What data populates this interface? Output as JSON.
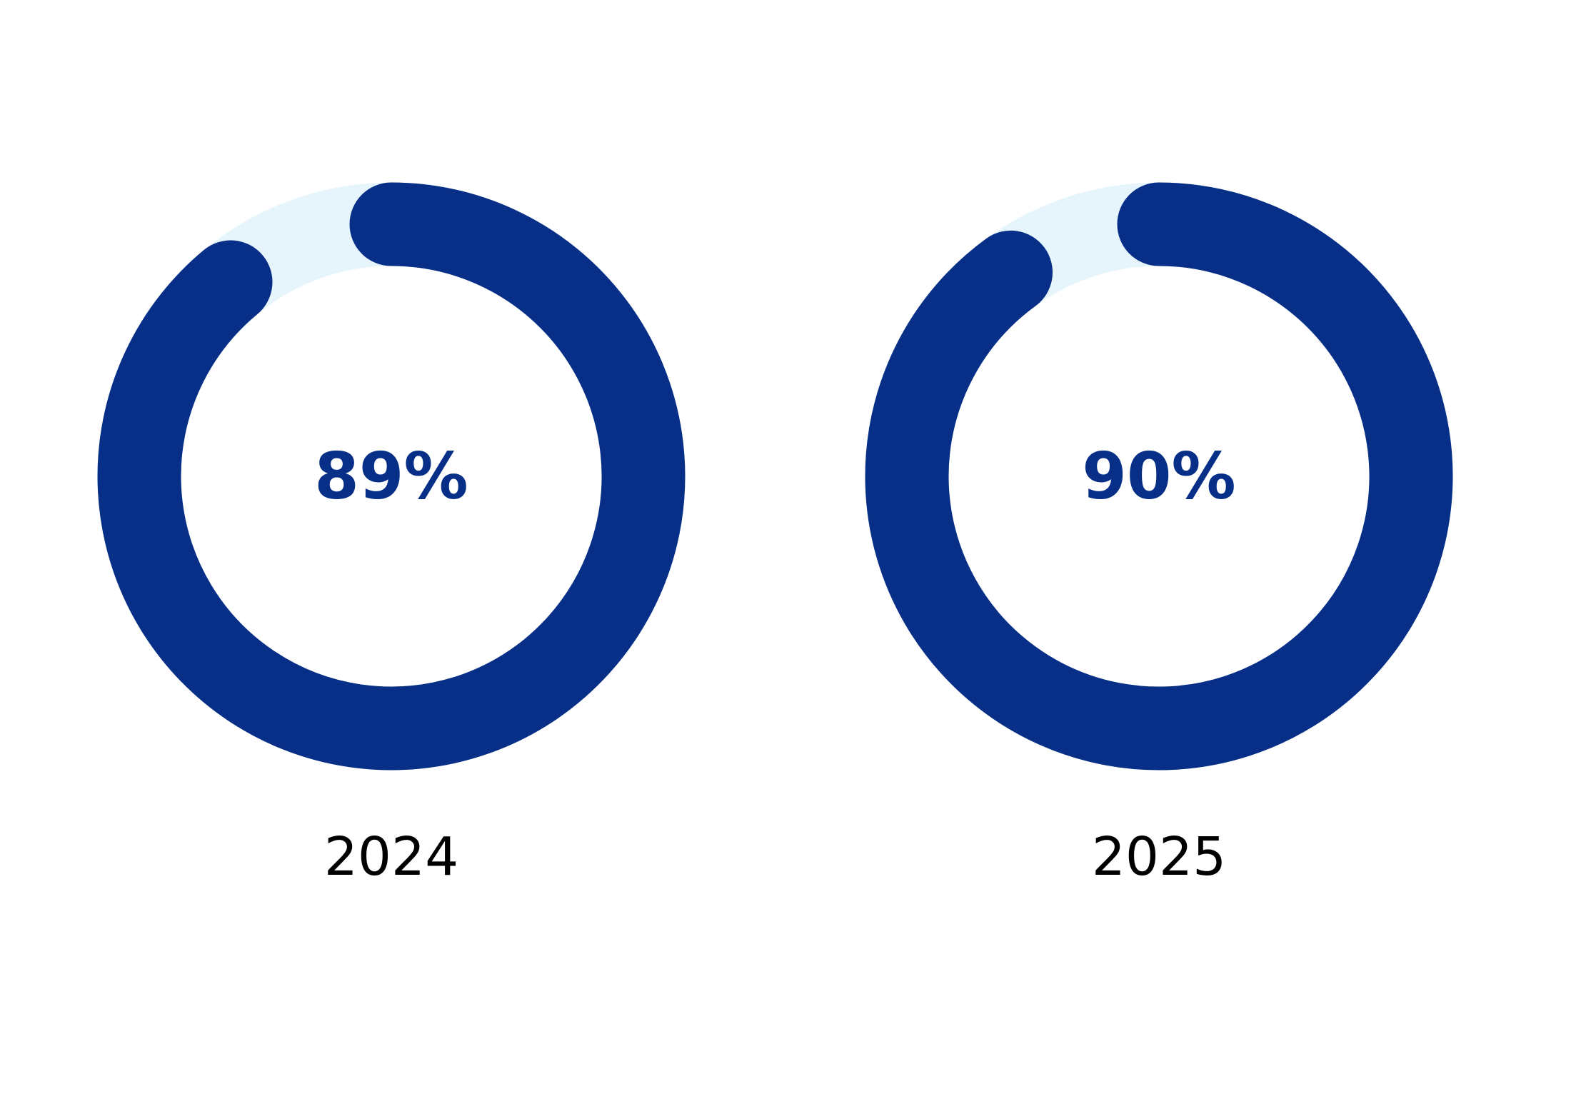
{
  "chart_data": [
    {
      "type": "donut",
      "title": "2024",
      "values": [
        89
      ],
      "value_labels": [
        "89%"
      ],
      "ylim": [
        0,
        100
      ],
      "color": "#072f87",
      "track_color": "#e6f5fc"
    },
    {
      "type": "donut",
      "title": "2025",
      "values": [
        90
      ],
      "value_labels": [
        "90%"
      ],
      "ylim": [
        0,
        100
      ],
      "color": "#072f87",
      "track_color": "#e6f5fc"
    }
  ]
}
